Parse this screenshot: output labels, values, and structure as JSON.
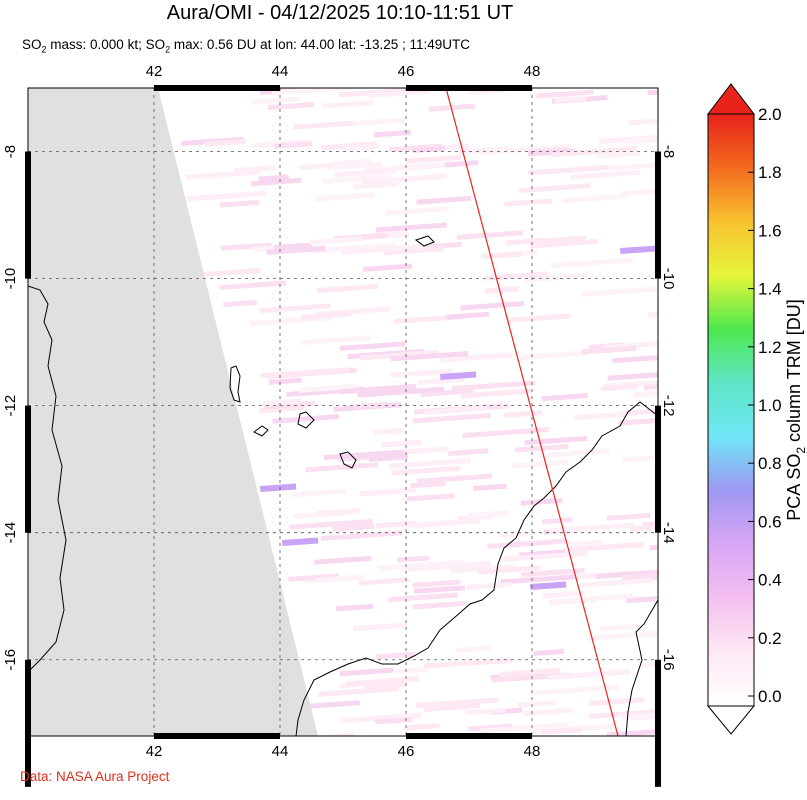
{
  "title": "Aura/OMI - 04/12/2025 10:10-11:51 UT",
  "subtitle_parts": {
    "a": "SO",
    "a_sub": "2",
    "b": " mass: 0.000 kt; SO",
    "b_sub": "2",
    "c": " max: 0.56 DU at lon: 44.00 lat: -13.25 ; 11:49UTC"
  },
  "credit": "Data: NASA Aura Project",
  "colorbar": {
    "label_pre": "PCA SO",
    "label_sub": "2",
    "label_post": " column TRM [DU]",
    "ticks": [
      "0.0",
      "0.2",
      "0.4",
      "0.6",
      "0.8",
      "1.0",
      "1.2",
      "1.4",
      "1.6",
      "1.8",
      "2.0"
    ],
    "stops": [
      "#ffffff",
      "#fde8f4",
      "#f4bff0",
      "#d8a6f5",
      "#9f98f2",
      "#6fe6f6",
      "#5ee6c8",
      "#4ee84e",
      "#e6f53a",
      "#f8c230",
      "#f46a1e",
      "#e8231b"
    ]
  },
  "chart_data": {
    "type": "map",
    "title": "Aura/OMI - 04/12/2025 10:10-11:51 UT",
    "xlim": [
      40,
      50
    ],
    "ylim": [
      -17.2,
      -7
    ],
    "x_ticks": [
      42,
      44,
      46,
      48
    ],
    "y_ticks": [
      -8,
      -10,
      -12,
      -14,
      -16
    ],
    "x_tick_labels": [
      "42",
      "44",
      "46",
      "48"
    ],
    "y_tick_labels": [
      "-8",
      "-10",
      "-12",
      "-14",
      "-16"
    ],
    "grid": true,
    "colorbar_range": [
      0.0,
      2.0
    ],
    "max_value": {
      "value": 0.56,
      "lon": 44.0,
      "lat": -13.25,
      "time": "11:49UTC"
    },
    "colors": {
      "no_data": "#e0e0e0",
      "orbit_track": "#e8231b",
      "coast": "#000000"
    }
  }
}
